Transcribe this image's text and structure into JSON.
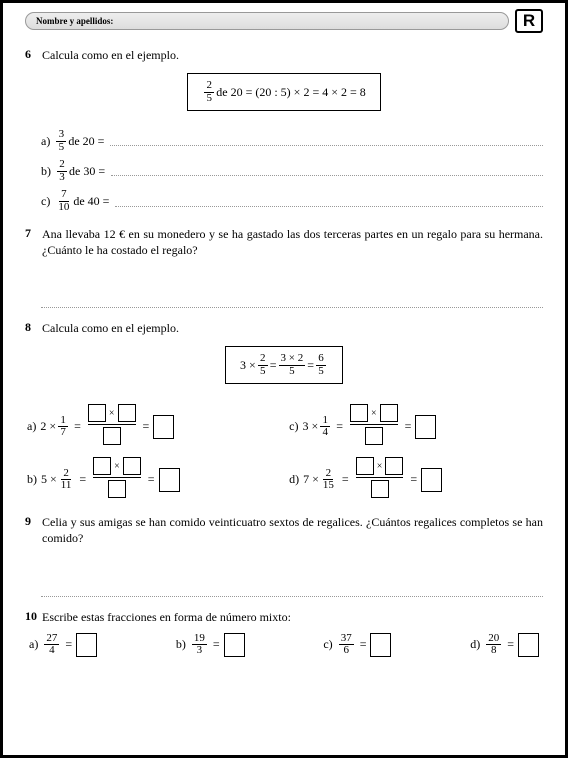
{
  "header": {
    "nameLabel": "Nombre y apellidos:",
    "badge": "R"
  },
  "p6": {
    "num": "6",
    "text": "Calcula como en el ejemplo.",
    "ex": {
      "f": {
        "n": "2",
        "d": "5"
      },
      "rest": " de 20 = (20 : 5) × 2 = 4 × 2 = 8"
    },
    "items": [
      {
        "l": "a)",
        "f": {
          "n": "3",
          "d": "5"
        },
        "t": " de 20 = "
      },
      {
        "l": "b)",
        "f": {
          "n": "2",
          "d": "3"
        },
        "t": " de 30 = "
      },
      {
        "l": "c)",
        "f": {
          "n": "7",
          "d": "10"
        },
        "t": " de 40 = "
      }
    ]
  },
  "p7": {
    "num": "7",
    "text": "Ana llevaba 12 € en su monedero y se ha gastado las dos terceras partes en un regalo para su hermana. ¿Cuánto le ha costado el regalo?"
  },
  "p8": {
    "num": "8",
    "text": "Calcula como en el ejemplo.",
    "ex": {
      "pre": "3 × ",
      "f1": {
        "n": "2",
        "d": "5"
      },
      "mid": " = ",
      "f2": {
        "n": "3 × 2",
        "d": "5"
      },
      "mid2": " = ",
      "f3": {
        "n": "6",
        "d": "5"
      }
    },
    "left": [
      {
        "l": "a)",
        "pre": "2 × ",
        "f": {
          "n": "1",
          "d": "7"
        }
      },
      {
        "l": "b)",
        "pre": "5 × ",
        "f": {
          "n": "2",
          "d": "11"
        }
      }
    ],
    "right": [
      {
        "l": "c)",
        "pre": "3 × ",
        "f": {
          "n": "1",
          "d": "4"
        }
      },
      {
        "l": "d)",
        "pre": "7 × ",
        "f": {
          "n": "2",
          "d": "15"
        }
      }
    ]
  },
  "p9": {
    "num": "9",
    "text": "Celia y sus amigas se han comido veinticuatro sextos de regalices. ¿Cuántos regalices completos se han comido?"
  },
  "p10": {
    "num": "10",
    "text": "Escribe estas fracciones en forma de número mixto:",
    "items": [
      {
        "l": "a)",
        "f": {
          "n": "27",
          "d": "4"
        }
      },
      {
        "l": "b)",
        "f": {
          "n": "19",
          "d": "3"
        }
      },
      {
        "l": "c)",
        "f": {
          "n": "37",
          "d": "6"
        }
      },
      {
        "l": "d)",
        "f": {
          "n": "20",
          "d": "8"
        }
      }
    ]
  }
}
